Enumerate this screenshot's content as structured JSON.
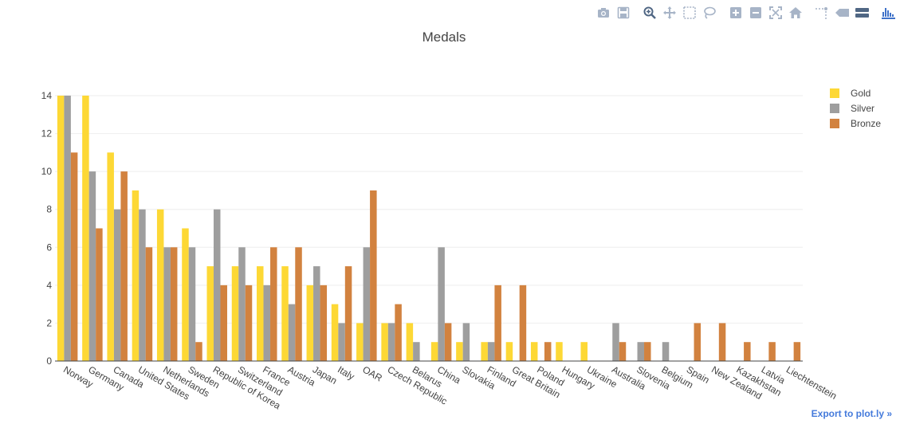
{
  "toolbar": {
    "buttons": [
      {
        "name": "camera-icon"
      },
      {
        "name": "save-icon"
      },
      {
        "name": "zoom-icon"
      },
      {
        "name": "pan-icon"
      },
      {
        "name": "box-select-icon"
      },
      {
        "name": "lasso-select-icon"
      },
      {
        "name": "zoom-in-icon"
      },
      {
        "name": "zoom-out-icon"
      },
      {
        "name": "autoscale-icon"
      },
      {
        "name": "home-icon"
      },
      {
        "name": "spike-lines-icon"
      },
      {
        "name": "hover-closest-icon"
      },
      {
        "name": "hover-compare-icon"
      },
      {
        "name": "plotly-logo-icon"
      }
    ]
  },
  "export_label": "Export to plot.ly »",
  "colors": {
    "gold": "#fdd835",
    "silver": "#9e9e9e",
    "bronze": "#d2823f",
    "grid": "#eeeeee",
    "axis": "#444444",
    "modebar": "#a7b4c7"
  },
  "chart_data": {
    "type": "bar",
    "title": "Medals",
    "xlabel": "",
    "ylabel": "",
    "ylim": [
      0,
      14
    ],
    "yticks": [
      0,
      2,
      4,
      6,
      8,
      10,
      12,
      14
    ],
    "grid": true,
    "legend_position": "top-right",
    "categories": [
      "Norway",
      "Germany",
      "Canada",
      "United States",
      "Netherlands",
      "Sweden",
      "Republic of Korea",
      "Switzerland",
      "France",
      "Austria",
      "Japan",
      "Italy",
      "OAR",
      "Czech Republic",
      "Belarus",
      "China",
      "Slovakia",
      "Finland",
      "Great Britain",
      "Poland",
      "Hungary",
      "Ukraine",
      "Australia",
      "Slovenia",
      "Belgium",
      "Spain",
      "New Zealand",
      "Kazakhstan",
      "Latvia",
      "Liechtenstein"
    ],
    "series": [
      {
        "name": "Gold",
        "color": "#fdd835",
        "values": [
          14,
          14,
          11,
          9,
          8,
          7,
          5,
          5,
          5,
          5,
          4,
          3,
          2,
          2,
          2,
          1,
          1,
          1,
          1,
          1,
          1,
          1,
          0,
          0,
          0,
          0,
          0,
          0,
          0,
          0
        ]
      },
      {
        "name": "Silver",
        "color": "#9e9e9e",
        "values": [
          14,
          10,
          8,
          8,
          6,
          6,
          8,
          6,
          4,
          3,
          5,
          2,
          6,
          2,
          1,
          6,
          2,
          1,
          0,
          0,
          0,
          0,
          2,
          1,
          1,
          0,
          0,
          0,
          0,
          0
        ]
      },
      {
        "name": "Bronze",
        "color": "#d2823f",
        "values": [
          11,
          7,
          10,
          6,
          6,
          1,
          4,
          4,
          6,
          6,
          4,
          5,
          9,
          3,
          0,
          2,
          0,
          4,
          4,
          1,
          0,
          0,
          1,
          1,
          0,
          2,
          2,
          1,
          1,
          1
        ]
      }
    ]
  }
}
